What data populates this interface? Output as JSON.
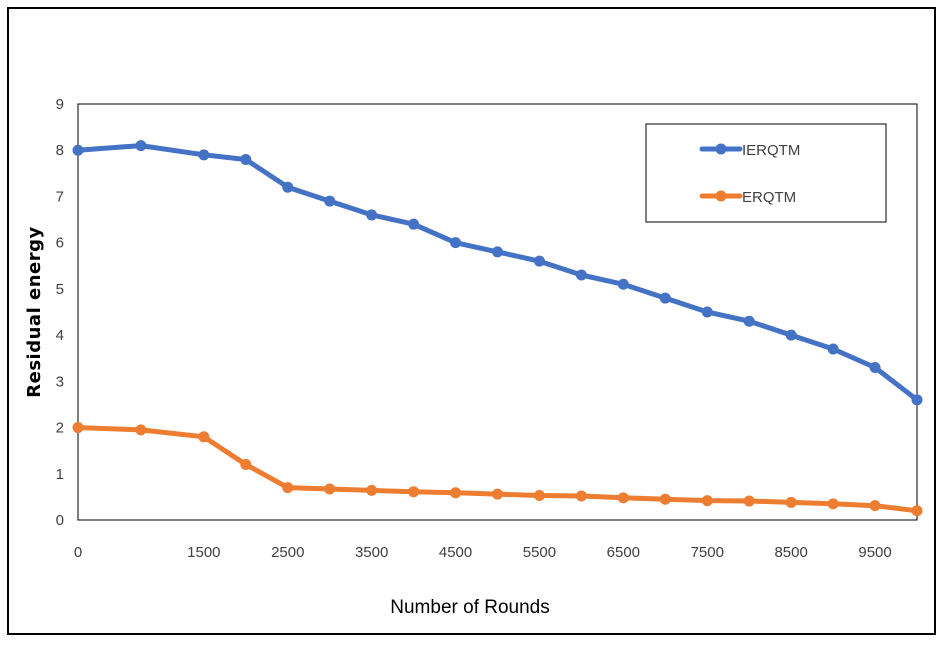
{
  "chart_data": {
    "type": "line",
    "title": "",
    "xlabel": "Number of Rounds",
    "ylabel": "Residual energy",
    "x": [
      0,
      750,
      1500,
      2000,
      2500,
      3000,
      3500,
      4000,
      4500,
      5000,
      5500,
      6000,
      6500,
      7000,
      7500,
      8000,
      8500,
      9000,
      9500,
      10000
    ],
    "x_tick_labels": [
      "0",
      "1500",
      "2500",
      "3500",
      "4500",
      "5500",
      "6500",
      "7500",
      "8500",
      "9500"
    ],
    "x_tick_values": [
      0,
      1500,
      2500,
      3500,
      4500,
      5500,
      6500,
      7500,
      8500,
      9500
    ],
    "xlim": [
      0,
      10000
    ],
    "ylim": [
      0,
      9
    ],
    "y_ticks": [
      0,
      1,
      2,
      3,
      4,
      5,
      6,
      7,
      8,
      9
    ],
    "grid": false,
    "legend_position": "top-right",
    "series": [
      {
        "name": "IERQTM",
        "color": "#4472C4",
        "values": [
          8.0,
          8.1,
          7.9,
          7.8,
          7.2,
          6.9,
          6.6,
          6.4,
          6.0,
          5.8,
          5.6,
          5.3,
          5.1,
          4.8,
          4.5,
          4.3,
          4.0,
          3.7,
          3.3,
          2.6
        ]
      },
      {
        "name": "ERQTM",
        "color": "#ED7D31",
        "values": [
          2.0,
          1.95,
          1.8,
          1.2,
          0.7,
          0.67,
          0.64,
          0.61,
          0.59,
          0.56,
          0.53,
          0.52,
          0.48,
          0.45,
          0.42,
          0.41,
          0.38,
          0.35,
          0.31,
          0.2
        ]
      }
    ]
  }
}
